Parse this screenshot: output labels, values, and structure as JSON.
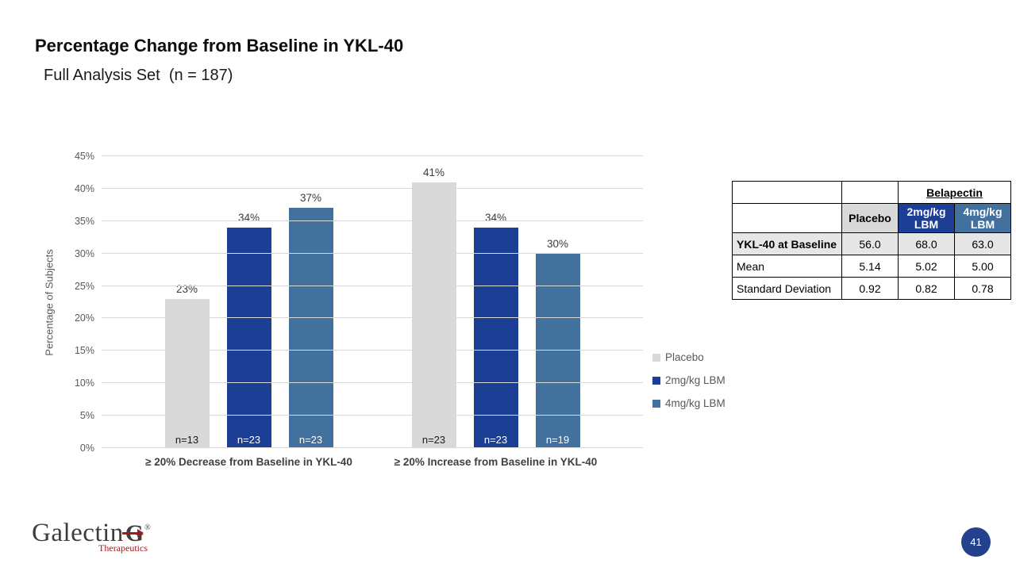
{
  "title": "Percentage Change from Baseline in YKL-40",
  "subtitle": "Full Analysis Set  (n = 187)",
  "chart_data": {
    "type": "bar",
    "title": "",
    "ylabel": "Percentage of Subjects",
    "ylim": [
      0,
      45
    ],
    "ytick_step": 5,
    "value_suffix": "%",
    "grid": "horizontal",
    "legend_position": "right",
    "categories": [
      "≥ 20% Decrease from Baseline in YKL-40",
      "≥ 20% Increase from Baseline in YKL-40"
    ],
    "series": [
      {
        "name": "Placebo",
        "color": "#D9D9D9",
        "values": [
          23,
          41
        ],
        "n_labels": [
          "n=13",
          "n=23"
        ],
        "n_label_color": "#1a1a1a"
      },
      {
        "name": "2mg/kg LBM",
        "color": "#1C3E94",
        "values": [
          34,
          34
        ],
        "n_labels": [
          "n=23",
          "n=23"
        ],
        "n_label_color": "#ffffff"
      },
      {
        "name": "4mg/kg LBM",
        "color": "#41719C",
        "values": [
          37,
          30
        ],
        "n_labels": [
          "n=23",
          "n=19"
        ],
        "n_label_color": "#ffffff"
      }
    ]
  },
  "stats_table": {
    "group_header": "Belapectin",
    "col_headers": [
      "Placebo",
      "2mg/kg LBM",
      "4mg/kg LBM"
    ],
    "rows": [
      {
        "label": "YKL-40 at Baseline",
        "values": [
          "56.0",
          "68.0",
          "63.0"
        ]
      },
      {
        "label": "Mean",
        "values": [
          "5.14",
          "5.02",
          "5.00"
        ]
      },
      {
        "label": "Standard Deviation",
        "values": [
          "0.92",
          "0.82",
          "0.78"
        ]
      }
    ]
  },
  "footer": {
    "logo": {
      "name": "Galectin",
      "mark_letter": "G",
      "reg": "®",
      "sub": "Therapeutics"
    },
    "page_number": "41"
  },
  "colors": {
    "placebo": "#D9D9D9",
    "dose2": "#1C3E94",
    "dose4": "#41719C",
    "page_circle": "#24418E",
    "logo_red": "#9E1B1B"
  }
}
